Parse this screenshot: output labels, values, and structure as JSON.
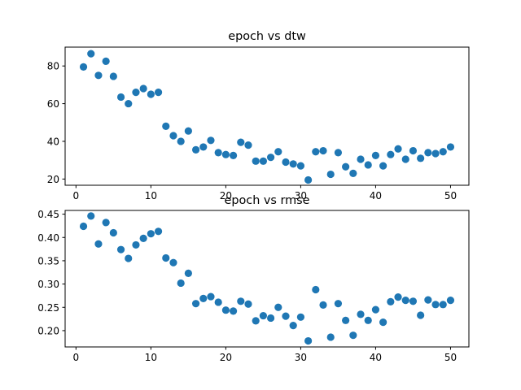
{
  "chart_data": [
    {
      "type": "scatter",
      "title": "epoch vs dtw",
      "xlabel": "",
      "ylabel": "",
      "xlim": [
        -1.45,
        52.45
      ],
      "ylim": [
        16.7,
        90.0
      ],
      "xticks": [
        0,
        10,
        20,
        30,
        40,
        50
      ],
      "yticks": [
        20,
        40,
        60,
        80
      ],
      "xtick_labels": [
        "0",
        "10",
        "20",
        "30",
        "40",
        "50"
      ],
      "ytick_labels": [
        "20",
        "40",
        "60",
        "80"
      ],
      "color": "#1f77b4",
      "grid": false,
      "x": [
        1,
        2,
        3,
        4,
        5,
        6,
        7,
        8,
        9,
        10,
        11,
        12,
        13,
        14,
        15,
        16,
        17,
        18,
        19,
        20,
        21,
        22,
        23,
        24,
        25,
        26,
        27,
        28,
        29,
        30,
        31,
        32,
        33,
        34,
        35,
        36,
        37,
        38,
        39,
        40,
        41,
        42,
        43,
        44,
        45,
        46,
        47,
        48,
        49,
        50
      ],
      "y": [
        79.5,
        86.5,
        75,
        82.5,
        74.5,
        63.5,
        60,
        66,
        68,
        65,
        66,
        48,
        43,
        40,
        45.5,
        35.5,
        37,
        40.5,
        34,
        33,
        32.5,
        39.5,
        38,
        29.5,
        29.5,
        31.5,
        34.5,
        29,
        28,
        27,
        19.5,
        34.5,
        35,
        22.5,
        34,
        26.5,
        23,
        30.5,
        27.5,
        32.5,
        27,
        33,
        36,
        30.5,
        35,
        31,
        34,
        33.5,
        34.5,
        37
      ]
    },
    {
      "type": "scatter",
      "title": "epoch vs rmse",
      "xlabel": "",
      "ylabel": "",
      "xlim": [
        -1.45,
        52.45
      ],
      "ylim": [
        0.165,
        0.458
      ],
      "xticks": [
        0,
        10,
        20,
        30,
        40,
        50
      ],
      "yticks": [
        0.2,
        0.25,
        0.3,
        0.35,
        0.4,
        0.45
      ],
      "xtick_labels": [
        "0",
        "10",
        "20",
        "30",
        "40",
        "50"
      ],
      "ytick_labels": [
        "0.20",
        "0.25",
        "0.30",
        "0.35",
        "0.40",
        "0.45"
      ],
      "color": "#1f77b4",
      "grid": false,
      "x": [
        1,
        2,
        3,
        4,
        5,
        6,
        7,
        8,
        9,
        10,
        11,
        12,
        13,
        14,
        15,
        16,
        17,
        18,
        19,
        20,
        21,
        22,
        23,
        24,
        25,
        26,
        27,
        28,
        29,
        30,
        31,
        32,
        33,
        34,
        35,
        36,
        37,
        38,
        39,
        40,
        41,
        42,
        43,
        44,
        45,
        46,
        47,
        48,
        49,
        50
      ],
      "y": [
        0.424,
        0.446,
        0.386,
        0.432,
        0.41,
        0.374,
        0.355,
        0.384,
        0.398,
        0.408,
        0.413,
        0.356,
        0.346,
        0.302,
        0.323,
        0.258,
        0.269,
        0.273,
        0.261,
        0.244,
        0.242,
        0.263,
        0.257,
        0.221,
        0.232,
        0.227,
        0.25,
        0.231,
        0.211,
        0.229,
        0.178,
        0.288,
        0.255,
        0.186,
        0.258,
        0.222,
        0.19,
        0.235,
        0.222,
        0.245,
        0.218,
        0.262,
        0.272,
        0.265,
        0.263,
        0.233,
        0.266,
        0.256,
        0.256,
        0.265
      ]
    }
  ]
}
